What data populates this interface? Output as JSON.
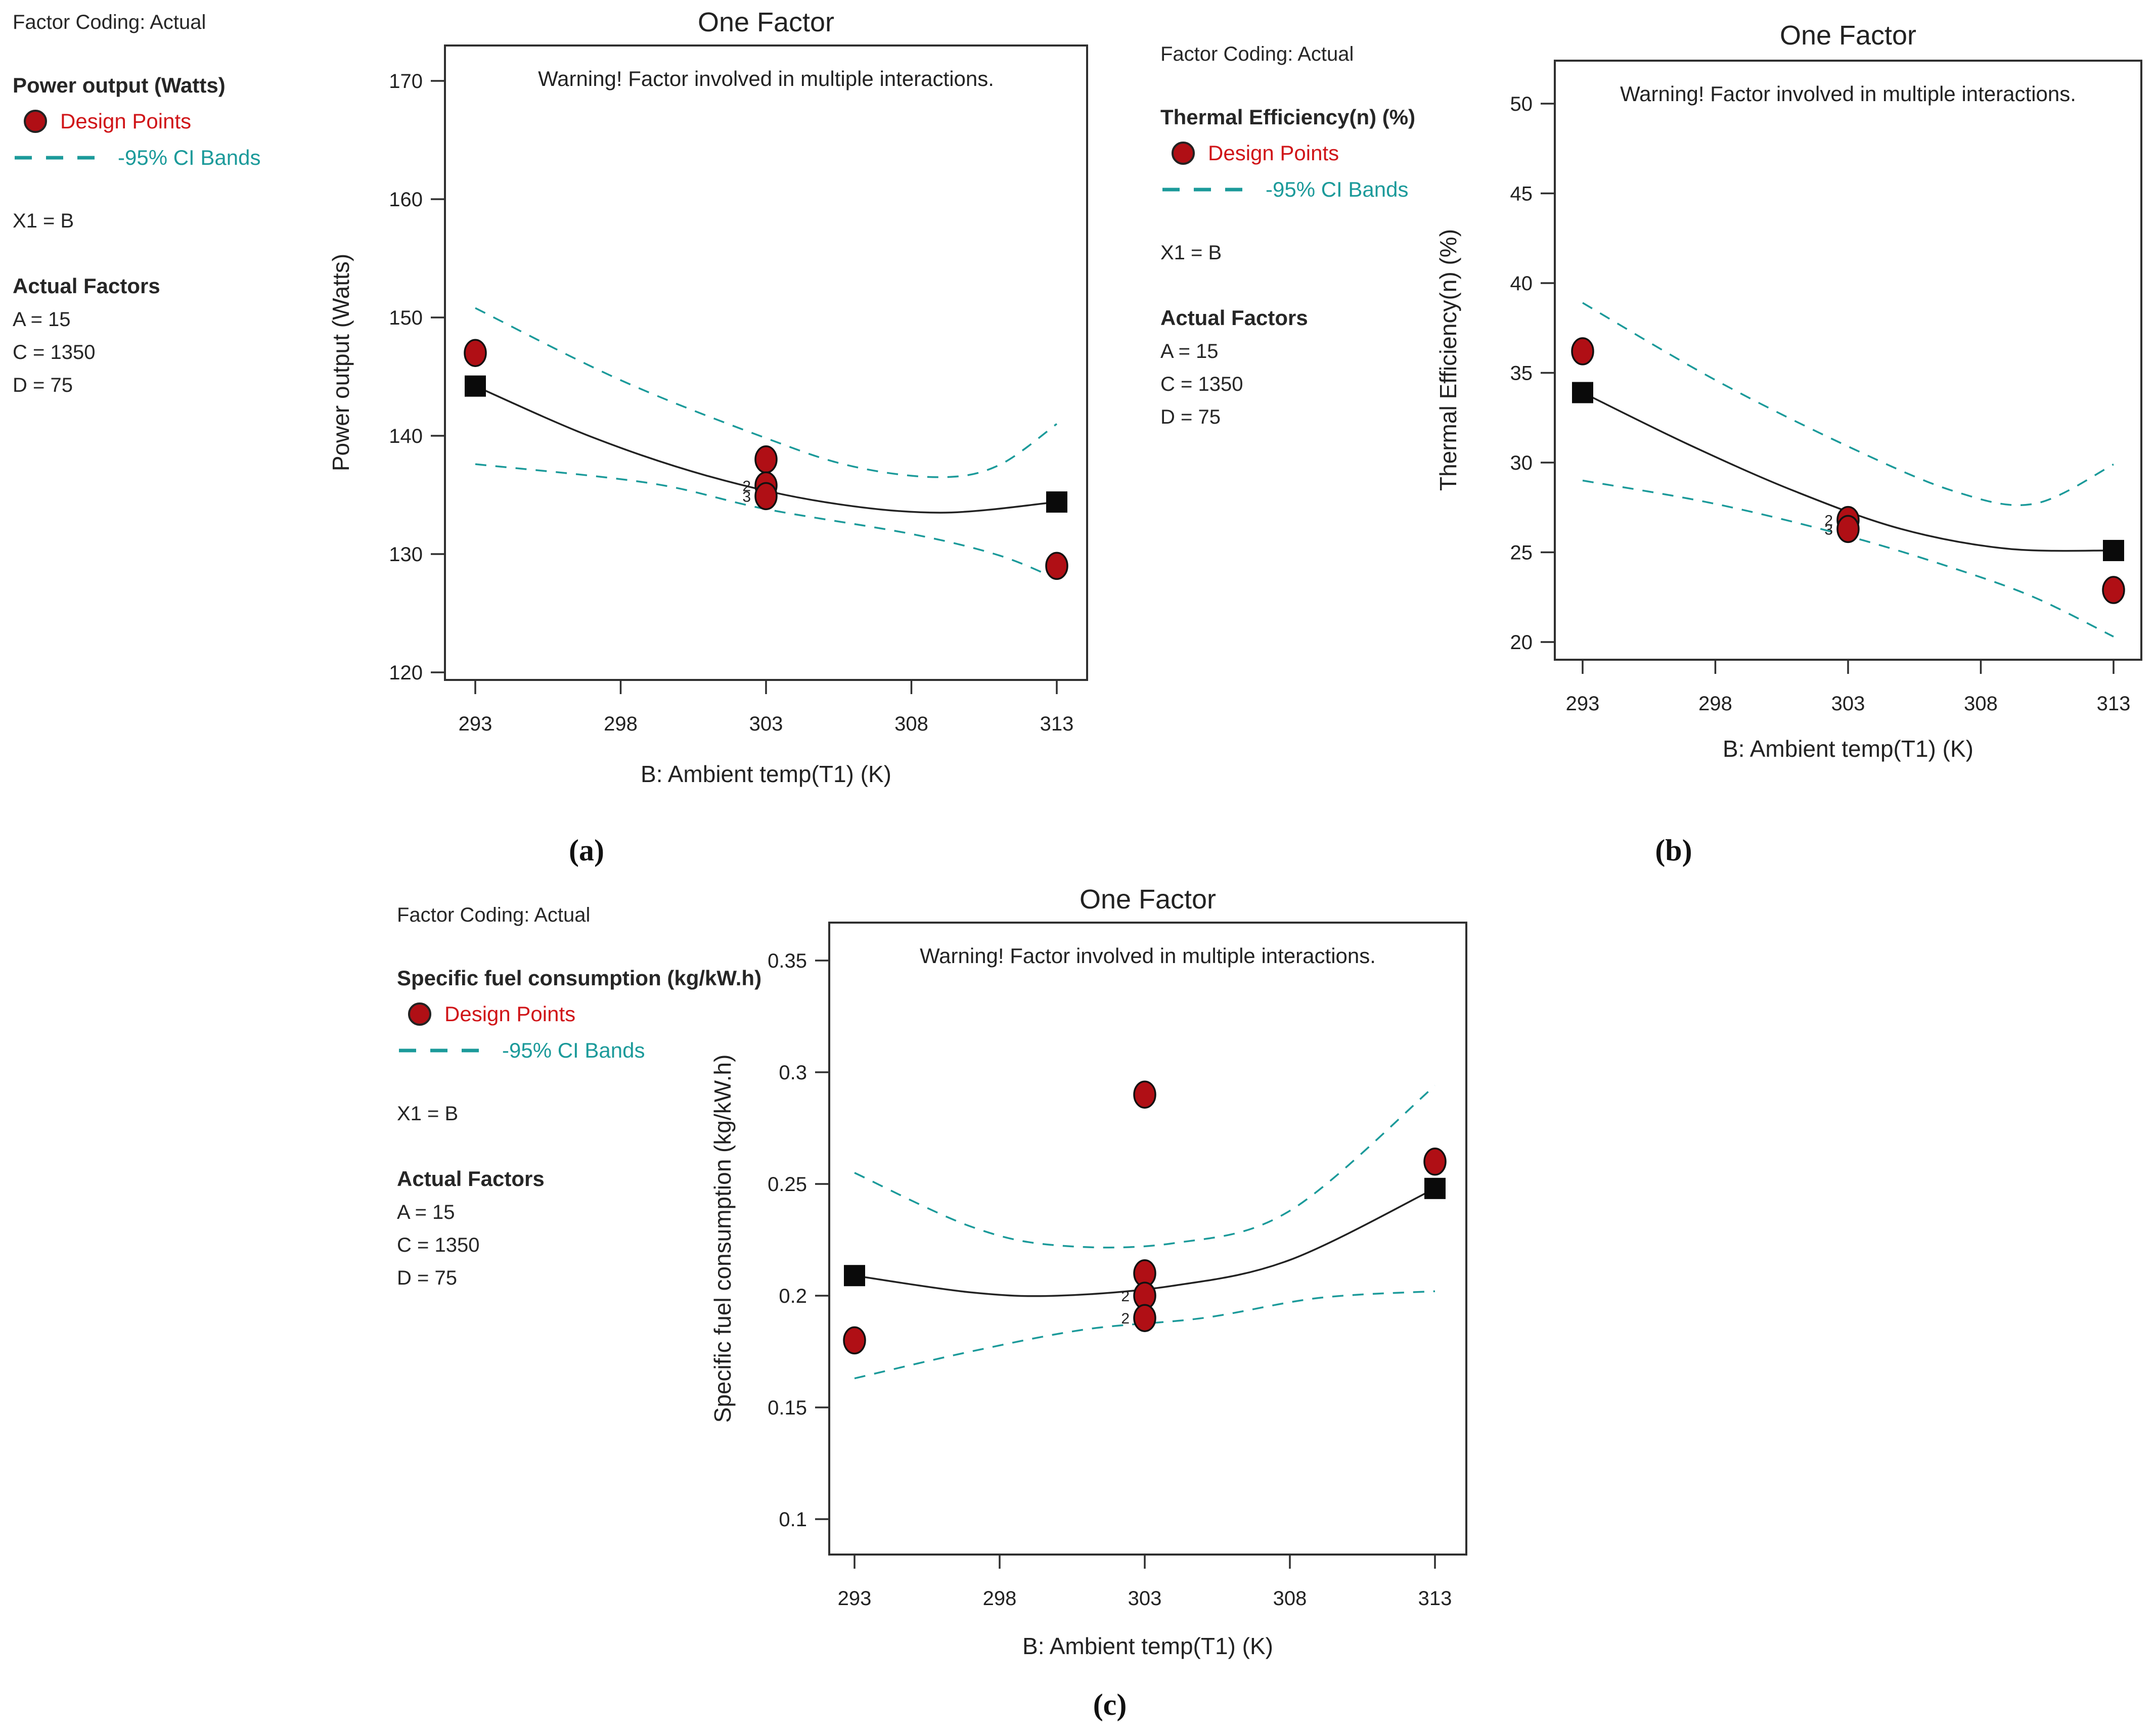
{
  "figure": {
    "captions": {
      "a": "(a)",
      "b": "(b)",
      "c": "(c)"
    }
  },
  "colors": {
    "design_point_fill": "#b00f15",
    "design_point_text": "#d01418",
    "ci_band": "#1b9a9a",
    "warning_text": "#fb1010",
    "fit_line": "#222222",
    "frame": "#2f2f2f"
  },
  "legends": [
    {
      "panel": "a",
      "factor_coding": "Factor Coding: Actual",
      "response": "Power output (Watts)",
      "design_points_label": "Design Points",
      "ci_label": "-95% CI Bands",
      "x1": "X1 = B",
      "actual_factors_title": "Actual Factors",
      "factors": [
        "A = 15",
        "C = 1350",
        "D = 75"
      ]
    },
    {
      "panel": "b",
      "factor_coding": "Factor Coding: Actual",
      "response": "Thermal Efficiency(n) (%)",
      "design_points_label": "Design Points",
      "ci_label": "-95% CI Bands",
      "x1": "X1 = B",
      "actual_factors_title": "Actual Factors",
      "factors": [
        "A = 15",
        "C = 1350",
        "D = 75"
      ]
    },
    {
      "panel": "c",
      "factor_coding": "Factor Coding: Actual",
      "response": "Specific fuel consumption (kg/kW.h)",
      "design_points_label": "Design Points",
      "ci_label": "-95% CI Bands",
      "x1": "X1 = B",
      "actual_factors_title": "Actual Factors",
      "factors": [
        "A = 15",
        "C = 1350",
        "D = 75"
      ]
    }
  ],
  "chart_data": [
    {
      "type": "line",
      "panel": "a",
      "title": "One Factor",
      "warning": "Warning! Factor involved in multiple interactions.",
      "xlabel": "B: Ambient temp(T1) (K)",
      "ylabel": "Power output (Watts)",
      "x_ticks": [
        293,
        298,
        303,
        308,
        313
      ],
      "y_ticks": [
        170,
        160,
        150,
        140,
        130,
        120
      ],
      "xlim": [
        291,
        315
      ],
      "ylim": [
        117,
        173
      ],
      "grid": false,
      "legend_position": "outside-left",
      "design_points": [
        {
          "x": 293,
          "y": 147,
          "label": ""
        },
        {
          "x": 303,
          "y": 138,
          "label": ""
        },
        {
          "x": 303,
          "y": 135.8,
          "label": "2"
        },
        {
          "x": 303,
          "y": 134.9,
          "label": "3"
        },
        {
          "x": 313,
          "y": 129,
          "label": ""
        }
      ],
      "model_endpoints": [
        {
          "x": 293,
          "y": 144.2
        },
        {
          "x": 313,
          "y": 134.4
        }
      ],
      "fit_curve": [
        [
          293,
          144.2
        ],
        [
          297,
          139.9
        ],
        [
          301,
          136.6
        ],
        [
          305,
          134.4
        ],
        [
          309,
          133.5
        ],
        [
          313,
          134.4
        ]
      ],
      "ci_upper": [
        [
          293,
          150.8
        ],
        [
          298,
          144.7
        ],
        [
          303,
          139.8
        ],
        [
          306,
          137.4
        ],
        [
          309,
          136.5
        ],
        [
          311,
          137.5
        ],
        [
          313,
          141.0
        ]
      ],
      "ci_lower": [
        [
          293,
          137.6
        ],
        [
          299,
          136.0
        ],
        [
          303,
          133.8
        ],
        [
          308,
          131.7
        ],
        [
          311,
          129.9
        ],
        [
          313,
          127.9
        ]
      ]
    },
    {
      "type": "line",
      "panel": "b",
      "title": "One Factor",
      "warning": "Warning! Factor involved in multiple interactions.",
      "xlabel": "B: Ambient temp(T1) (K)",
      "ylabel": "Thermal Efficiency(n) (%)",
      "x_ticks": [
        293,
        298,
        303,
        308,
        313
      ],
      "y_ticks": [
        50,
        45,
        40,
        35,
        30,
        25,
        20
      ],
      "xlim": [
        291,
        315
      ],
      "ylim": [
        18,
        52
      ],
      "grid": false,
      "legend_position": "outside-left",
      "design_points": [
        {
          "x": 293,
          "y": 36.2,
          "label": ""
        },
        {
          "x": 303,
          "y": 26.8,
          "label": "2"
        },
        {
          "x": 303,
          "y": 26.3,
          "label": "3"
        },
        {
          "x": 313,
          "y": 22.9,
          "label": ""
        }
      ],
      "model_endpoints": [
        {
          "x": 293,
          "y": 33.9
        },
        {
          "x": 313,
          "y": 25.1
        }
      ],
      "fit_curve": [
        [
          293,
          33.9
        ],
        [
          297,
          31.0
        ],
        [
          301,
          28.4
        ],
        [
          305,
          26.3
        ],
        [
          309,
          25.2
        ],
        [
          313,
          25.1
        ]
      ],
      "ci_upper": [
        [
          293,
          38.9
        ],
        [
          298,
          34.6
        ],
        [
          303,
          30.9
        ],
        [
          307,
          28.4
        ],
        [
          310,
          27.7
        ],
        [
          313,
          29.9
        ]
      ],
      "ci_lower": [
        [
          293,
          29.0
        ],
        [
          298,
          27.7
        ],
        [
          303,
          25.9
        ],
        [
          307,
          24.1
        ],
        [
          310,
          22.5
        ],
        [
          313,
          20.3
        ]
      ]
    },
    {
      "type": "line",
      "panel": "c",
      "title": "One Factor",
      "warning": "Warning! Factor involved in multiple interactions.",
      "xlabel": "B: Ambient temp(T1) (K)",
      "ylabel": "Specific fuel consumption (kg/kW.h)",
      "x_ticks": [
        293,
        298,
        303,
        308,
        313
      ],
      "y_ticks": [
        0.35,
        0.3,
        0.25,
        0.2,
        0.15,
        0.1
      ],
      "xlim": [
        291,
        315
      ],
      "ylim": [
        0.08,
        0.36
      ],
      "grid": false,
      "legend_position": "outside-left",
      "design_points": [
        {
          "x": 293,
          "y": 0.18,
          "label": ""
        },
        {
          "x": 303,
          "y": 0.29,
          "label": ""
        },
        {
          "x": 303,
          "y": 0.21,
          "label": ""
        },
        {
          "x": 303,
          "y": 0.2,
          "label": "2"
        },
        {
          "x": 303,
          "y": 0.19,
          "label": "2"
        },
        {
          "x": 313,
          "y": 0.26,
          "label": ""
        }
      ],
      "model_endpoints": [
        {
          "x": 293,
          "y": 0.209
        },
        {
          "x": 313,
          "y": 0.248
        }
      ],
      "fit_curve": [
        [
          293,
          0.209
        ],
        [
          297,
          0.2015
        ],
        [
          300,
          0.2
        ],
        [
          304,
          0.2045
        ],
        [
          308,
          0.216
        ],
        [
          313,
          0.248
        ]
      ],
      "ci_upper": [
        [
          293,
          0.255
        ],
        [
          297,
          0.231
        ],
        [
          300,
          0.2225
        ],
        [
          304,
          0.2235
        ],
        [
          308,
          0.238
        ],
        [
          313,
          0.294
        ]
      ],
      "ci_lower": [
        [
          293,
          0.163
        ],
        [
          297,
          0.175
        ],
        [
          301,
          0.185
        ],
        [
          305,
          0.19
        ],
        [
          309,
          0.199
        ],
        [
          313,
          0.202
        ]
      ]
    }
  ]
}
